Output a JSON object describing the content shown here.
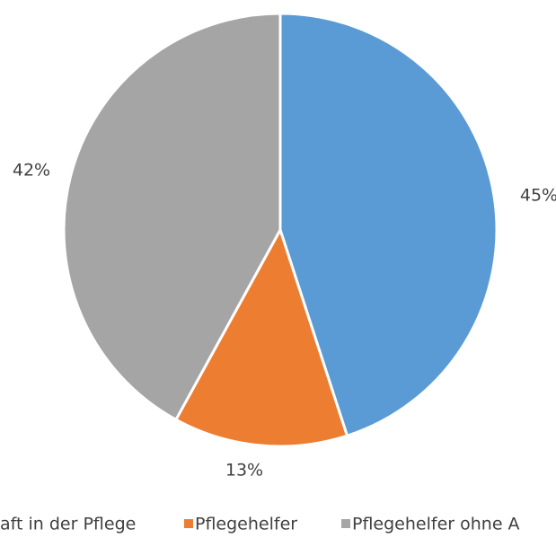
{
  "chart_data": {
    "type": "pie",
    "categories": [
      "aft in der Pflege",
      "Pflegehelfer",
      "Pflegehelfer ohne A"
    ],
    "values": [
      45,
      13,
      42
    ],
    "value_labels": [
      "45%",
      "13%",
      "42%"
    ],
    "colors": [
      "#5b9bd5",
      "#ed7d31",
      "#a5a5a5"
    ],
    "legend": "bottom"
  }
}
